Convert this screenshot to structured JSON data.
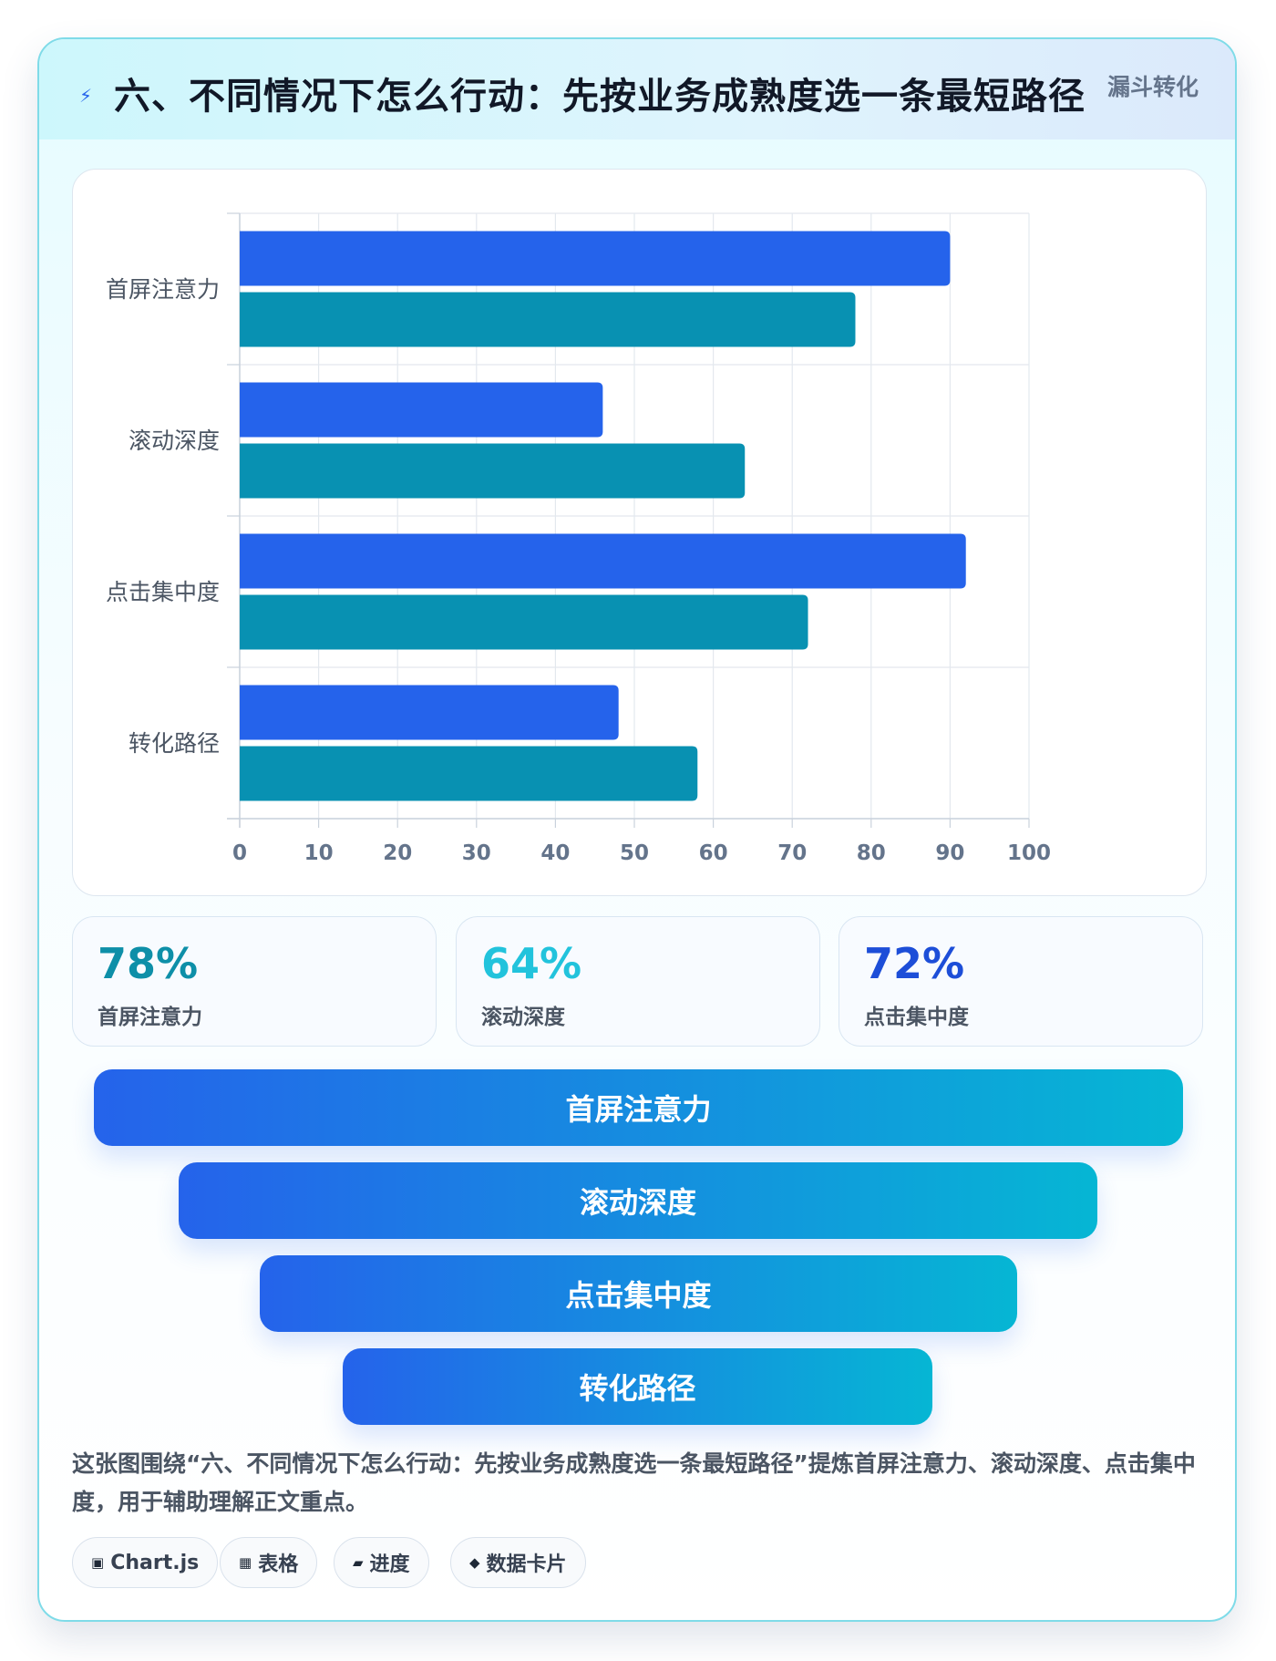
{
  "header": {
    "icon": "lightning-icon",
    "title": "六、不同情况下怎么行动：先按业务成熟度选一条最短路径",
    "tag": "漏斗转化"
  },
  "chart_data": {
    "type": "bar",
    "orientation": "horizontal",
    "categories": [
      "首屏注意力",
      "滚动深度",
      "点击集中度",
      "转化路径"
    ],
    "series": [
      {
        "values": [
          90,
          46,
          92,
          48
        ],
        "color": "#2563eb"
      },
      {
        "values": [
          78,
          64,
          72,
          58
        ],
        "color": "#0891b2"
      }
    ],
    "xlim": [
      0,
      100
    ],
    "xticks": [
      0,
      10,
      20,
      30,
      40,
      50,
      60,
      70,
      80,
      90,
      100
    ],
    "grid": true,
    "legend": "none"
  },
  "stats": [
    {
      "value": "78%",
      "label": "首屏注意力",
      "color": "#0e8fa8"
    },
    {
      "value": "64%",
      "label": "滚动深度",
      "color": "#22c3dc"
    },
    {
      "value": "72%",
      "label": "点击集中度",
      "color": "#1d4ed8"
    }
  ],
  "funnel": [
    "首屏注意力",
    "滚动深度",
    "点击集中度",
    "转化路径"
  ],
  "description": "这张图围绕“六、不同情况下怎么行动：先按业务成熟度选一条最短路径”提炼首屏注意力、滚动深度、点击集中度，用于辅助理解正文重点。",
  "chips": [
    {
      "icon": "▣",
      "icon_name": "chart-icon",
      "label": "Chart.js"
    },
    {
      "icon": "▦",
      "icon_name": "table-icon",
      "label": "表格"
    },
    {
      "icon": "▰",
      "icon_name": "progress-icon",
      "label": "进度"
    },
    {
      "icon": "◆",
      "icon_name": "diamond-icon",
      "label": "数据卡片"
    }
  ]
}
